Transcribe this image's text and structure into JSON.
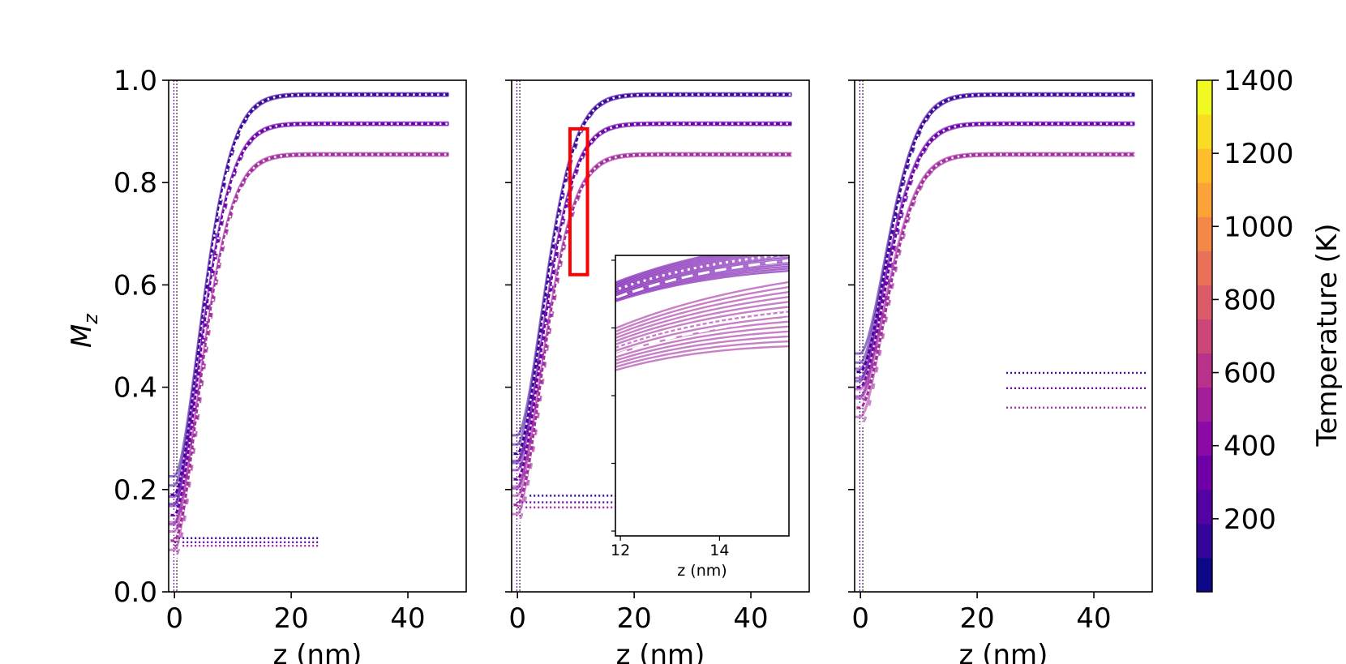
{
  "chart_data": {
    "type": "line",
    "shared_xlabel": "z (nm)",
    "shared_ylabel": "M",
    "ylabel_subscript": "z",
    "panels": [
      {
        "id": "left",
        "xlim": [
          -1,
          50
        ],
        "ylim": [
          0,
          1.0
        ],
        "xticks": [
          "0",
          "20",
          "40"
        ],
        "yticks": [
          "0.0",
          "0.2",
          "0.4",
          "0.6",
          "0.8",
          "1.0"
        ],
        "show_ytick_labels": true,
        "curves": [
          {
            "temperature": 100,
            "color": "#3b049a",
            "start": 0.19,
            "plateau": 0.972,
            "z_end": 47
          },
          {
            "temperature": 300,
            "color": "#6a00a8",
            "start": 0.15,
            "plateau": 0.915,
            "z_end": 47
          },
          {
            "temperature": 500,
            "color": "#a22b9e",
            "start": 0.1,
            "plateau": 0.855,
            "z_end": 47
          }
        ],
        "levels": [
          {
            "value": 0.105,
            "color": "#3b049a",
            "z_start": 0,
            "z_end": 25
          },
          {
            "value": 0.097,
            "color": "#6a00a8",
            "z_start": 0,
            "z_end": 25
          },
          {
            "value": 0.09,
            "color": "#a22b9e",
            "z_start": 0,
            "z_end": 25
          }
        ]
      },
      {
        "id": "middle",
        "xlim": [
          -1,
          50
        ],
        "ylim": [
          0,
          1.0
        ],
        "xticks": [
          "0",
          "20",
          "40"
        ],
        "yticks": [
          "0.0",
          "0.2",
          "0.4",
          "0.6",
          "0.8",
          "1.0"
        ],
        "show_ytick_labels": false,
        "curves": [
          {
            "temperature": 100,
            "color": "#3b049a",
            "start": 0.27,
            "plateau": 0.972,
            "z_end": 47
          },
          {
            "temperature": 300,
            "color": "#6a00a8",
            "start": 0.22,
            "plateau": 0.915,
            "z_end": 47
          },
          {
            "temperature": 500,
            "color": "#a22b9e",
            "start": 0.17,
            "plateau": 0.855,
            "z_end": 47
          }
        ],
        "levels": [
          {
            "value": 0.188,
            "color": "#3b049a",
            "z_start": 0,
            "z_end": 17
          },
          {
            "value": 0.175,
            "color": "#6a00a8",
            "z_start": 0,
            "z_end": 17
          },
          {
            "value": 0.165,
            "color": "#a22b9e",
            "z_start": 0,
            "z_end": 17
          }
        ],
        "highlight_box": {
          "x": [
            9,
            12
          ],
          "y": [
            0.62,
            0.905
          ],
          "color": "#ff0000"
        },
        "inset": {
          "xlabel": "z (nm)",
          "xticks": [
            "12",
            "14"
          ],
          "xlim": [
            11.9,
            15.4
          ],
          "ylim": [
            0.615,
            0.905
          ]
        }
      },
      {
        "id": "right",
        "xlim": [
          -1,
          50
        ],
        "ylim": [
          0,
          1.0
        ],
        "xticks": [
          "0",
          "20",
          "40"
        ],
        "yticks": [
          "0.0",
          "0.2",
          "0.4",
          "0.6",
          "0.8",
          "1.0"
        ],
        "show_ytick_labels": false,
        "curves": [
          {
            "temperature": 100,
            "color": "#3b049a",
            "start": 0.43,
            "plateau": 0.972,
            "z_end": 47
          },
          {
            "temperature": 300,
            "color": "#6a00a8",
            "start": 0.4,
            "plateau": 0.915,
            "z_end": 47
          },
          {
            "temperature": 500,
            "color": "#a22b9e",
            "start": 0.36,
            "plateau": 0.855,
            "z_end": 47
          }
        ],
        "levels": [
          {
            "value": 0.428,
            "color": "#3b049a",
            "z_start": 25,
            "z_end": 49
          },
          {
            "value": 0.398,
            "color": "#6a00a8",
            "z_start": 25,
            "z_end": 49
          },
          {
            "value": 0.36,
            "color": "#a22b9e",
            "z_start": 25,
            "z_end": 49
          }
        ]
      }
    ],
    "colorbar": {
      "label": "Temperature (K)",
      "colormap": "plasma",
      "range": [
        0,
        1400
      ],
      "ticks": [
        "200",
        "400",
        "600",
        "800",
        "1000",
        "1200",
        "1400"
      ],
      "colors": [
        "#0d0887",
        "#350498",
        "#5302a3",
        "#6f00a8",
        "#8b0aa5",
        "#a31e9a",
        "#b83289",
        "#cc4778",
        "#db5c68",
        "#e97158",
        "#f48849",
        "#fba238",
        "#febd2a",
        "#f9dc24",
        "#f0f921"
      ]
    }
  }
}
